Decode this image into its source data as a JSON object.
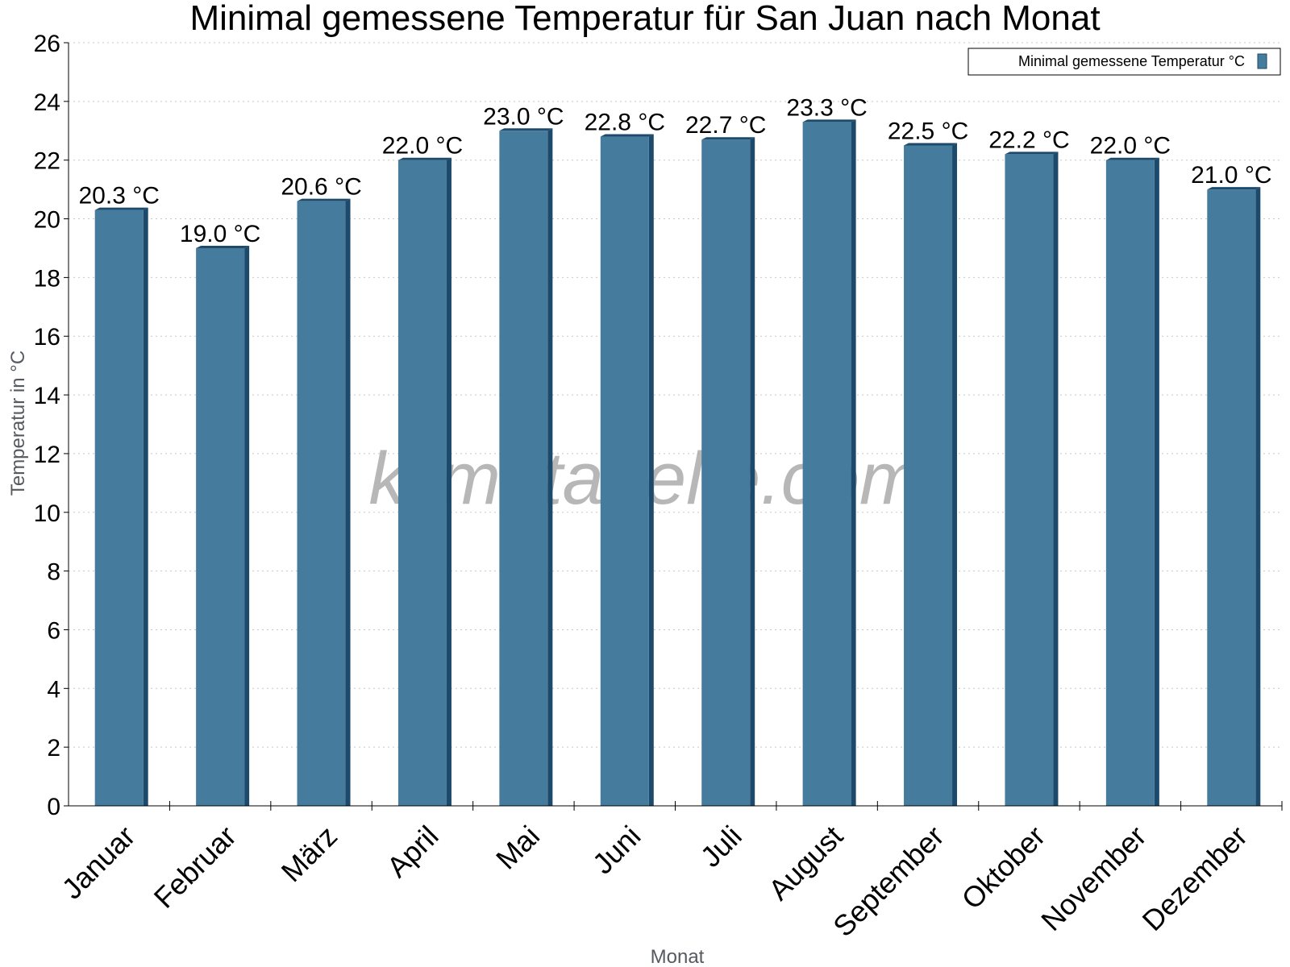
{
  "chart_data": {
    "type": "bar",
    "title": "Minimal gemessene Temperatur für San Juan nach Monat",
    "xlabel": "Monat",
    "ylabel": "Temperatur in °C",
    "ylim": [
      0,
      26
    ],
    "yticks": [
      0,
      2,
      4,
      6,
      8,
      10,
      12,
      14,
      16,
      18,
      20,
      22,
      24,
      26
    ],
    "grid": true,
    "legend_position": "top-right",
    "categories": [
      "Januar",
      "Februar",
      "März",
      "April",
      "Mai",
      "Juni",
      "Juli",
      "August",
      "September",
      "Oktober",
      "November",
      "Dezember"
    ],
    "series": [
      {
        "name": "Minimal gemessene Temperatur °C",
        "color": "#457b9d",
        "values": [
          20.3,
          19.0,
          20.6,
          22.0,
          23.0,
          22.8,
          22.7,
          23.3,
          22.5,
          22.2,
          22.0,
          21.0
        ],
        "data_labels": [
          "20.3 °C",
          "19.0 °C",
          "20.6 °C",
          "22.0 °C",
          "23.0 °C",
          "22.8 °C",
          "22.7 °C",
          "23.3 °C",
          "22.5 °C",
          "22.2 °C",
          "22.0 °C",
          "21.0 °C"
        ]
      }
    ],
    "watermark": "klimatabelle.com"
  }
}
